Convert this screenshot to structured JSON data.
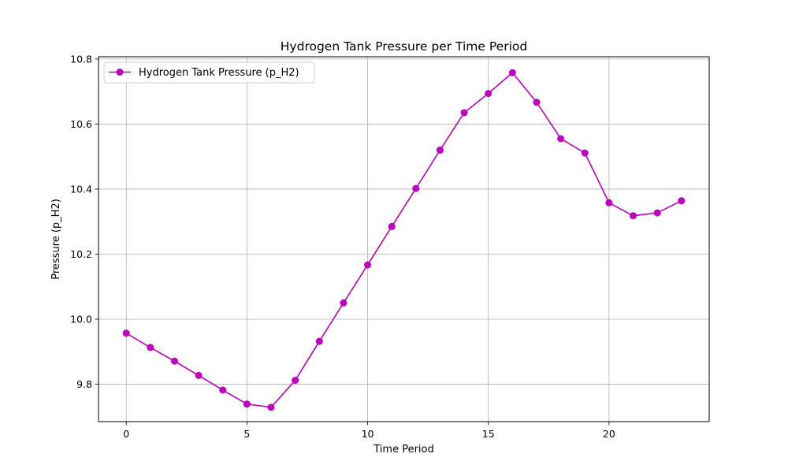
{
  "chart_data": {
    "type": "line",
    "title": "Hydrogen Tank Pressure per Time Period",
    "xlabel": "Time Period",
    "ylabel": "Pressure (p_H2)",
    "xlim": [
      -1.15,
      24.15
    ],
    "ylim": [
      9.685,
      10.807
    ],
    "xticks": [
      0,
      5,
      10,
      15,
      20
    ],
    "yticks": [
      9.8,
      10.0,
      10.2,
      10.4,
      10.6,
      10.8
    ],
    "xtick_labels": [
      "0",
      "5",
      "10",
      "15",
      "20"
    ],
    "ytick_labels": [
      "9.8",
      "10.0",
      "10.2",
      "10.4",
      "10.6",
      "10.8"
    ],
    "grid": true,
    "legend_position": "upper-left",
    "series": [
      {
        "name": "Hydrogen Tank Pressure (p_H2)",
        "color": "#bf00bf",
        "marker": "circle",
        "x": [
          0,
          1,
          2,
          3,
          4,
          5,
          6,
          7,
          8,
          9,
          10,
          11,
          12,
          13,
          14,
          15,
          16,
          17,
          18,
          19,
          20,
          21,
          22,
          23
        ],
        "values": [
          9.957,
          9.913,
          9.871,
          9.827,
          9.782,
          9.739,
          9.729,
          9.812,
          9.932,
          10.05,
          10.167,
          10.285,
          10.402,
          10.52,
          10.635,
          10.694,
          10.758,
          10.667,
          10.555,
          10.511,
          10.358,
          10.318,
          10.327,
          10.364
        ]
      }
    ]
  }
}
